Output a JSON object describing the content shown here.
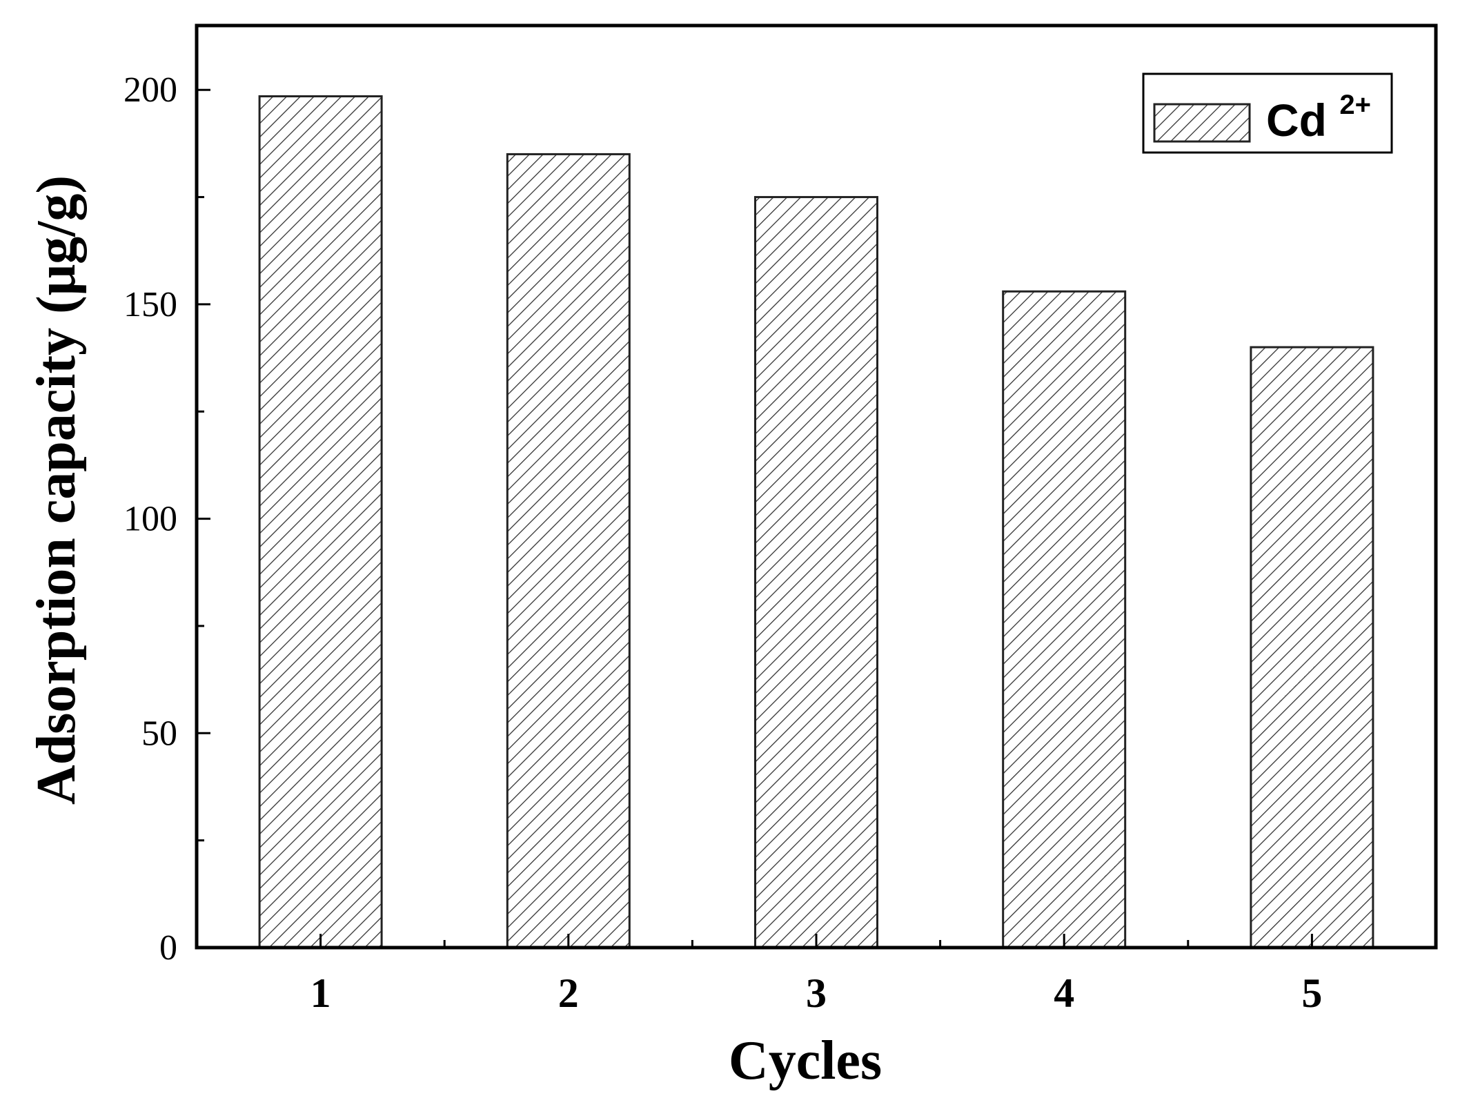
{
  "chart_data": {
    "type": "bar",
    "categories": [
      "1",
      "2",
      "3",
      "4",
      "5"
    ],
    "series": [
      {
        "name": "Cd2+",
        "values": [
          198.5,
          185,
          175,
          153,
          140
        ]
      }
    ],
    "xlabel": "Cycles",
    "ylabel": "Adsorption capacity (μg/g)",
    "ylim": [
      0,
      215
    ],
    "yticks": [
      0,
      50,
      100,
      150,
      200
    ],
    "grid": false,
    "legend": {
      "position": "top-right",
      "base": "Cd",
      "superscript": "2+"
    },
    "bar_fill": "diagonal-hatch",
    "colors": {
      "axis": "#000000",
      "bar_edge": "#222222",
      "hatch": "#333333",
      "background": "#ffffff"
    }
  }
}
